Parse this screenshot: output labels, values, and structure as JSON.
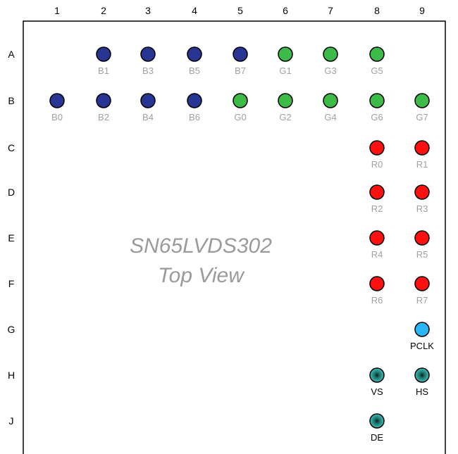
{
  "columns": [
    "1",
    "2",
    "3",
    "4",
    "5",
    "6",
    "7",
    "8",
    "9"
  ],
  "rows": [
    "A",
    "B",
    "C",
    "D",
    "E",
    "F",
    "G",
    "H",
    "J"
  ],
  "title_line1": "SN65LVDS302",
  "title_line2": "Top View",
  "colors": {
    "blue": "#283593",
    "green": "#3dbb48",
    "red": "#ff1010",
    "cyan": "#29b6f6",
    "teal": "#26a69a",
    "gray_text": "#a0a0a0",
    "black_text": "#000000"
  },
  "pins": [
    {
      "label": "B1",
      "row": "A",
      "col": 2,
      "color": "blue"
    },
    {
      "label": "B3",
      "row": "A",
      "col": 3,
      "color": "blue"
    },
    {
      "label": "B5",
      "row": "A",
      "col": 4,
      "color": "blue"
    },
    {
      "label": "B7",
      "row": "A",
      "col": 5,
      "color": "blue"
    },
    {
      "label": "G1",
      "row": "A",
      "col": 6,
      "color": "green"
    },
    {
      "label": "G3",
      "row": "A",
      "col": 7,
      "color": "green"
    },
    {
      "label": "G5",
      "row": "A",
      "col": 8,
      "color": "green"
    },
    {
      "label": "B0",
      "row": "B",
      "col": 1,
      "color": "blue"
    },
    {
      "label": "B2",
      "row": "B",
      "col": 2,
      "color": "blue"
    },
    {
      "label": "B4",
      "row": "B",
      "col": 3,
      "color": "blue"
    },
    {
      "label": "B6",
      "row": "B",
      "col": 4,
      "color": "blue"
    },
    {
      "label": "G0",
      "row": "B",
      "col": 5,
      "color": "green"
    },
    {
      "label": "G2",
      "row": "B",
      "col": 6,
      "color": "green"
    },
    {
      "label": "G4",
      "row": "B",
      "col": 7,
      "color": "green"
    },
    {
      "label": "G6",
      "row": "B",
      "col": 8,
      "color": "green"
    },
    {
      "label": "G7",
      "row": "B",
      "col": 9,
      "color": "green"
    },
    {
      "label": "R0",
      "row": "C",
      "col": 8,
      "color": "red"
    },
    {
      "label": "R1",
      "row": "C",
      "col": 9,
      "color": "red"
    },
    {
      "label": "R2",
      "row": "D",
      "col": 8,
      "color": "red"
    },
    {
      "label": "R3",
      "row": "D",
      "col": 9,
      "color": "red"
    },
    {
      "label": "R4",
      "row": "E",
      "col": 8,
      "color": "red"
    },
    {
      "label": "R5",
      "row": "E",
      "col": 9,
      "color": "red"
    },
    {
      "label": "R6",
      "row": "F",
      "col": 8,
      "color": "red"
    },
    {
      "label": "R7",
      "row": "F",
      "col": 9,
      "color": "red"
    },
    {
      "label": "PCLK",
      "row": "G",
      "col": 9,
      "color": "cyan",
      "label_color": "black_text"
    },
    {
      "label": "VS",
      "row": "H",
      "col": 8,
      "color": "teal",
      "label_color": "black_text"
    },
    {
      "label": "HS",
      "row": "H",
      "col": 9,
      "color": "teal",
      "label_color": "black_text"
    },
    {
      "label": "DE",
      "row": "J",
      "col": 8,
      "color": "teal",
      "label_color": "black_text"
    }
  ]
}
